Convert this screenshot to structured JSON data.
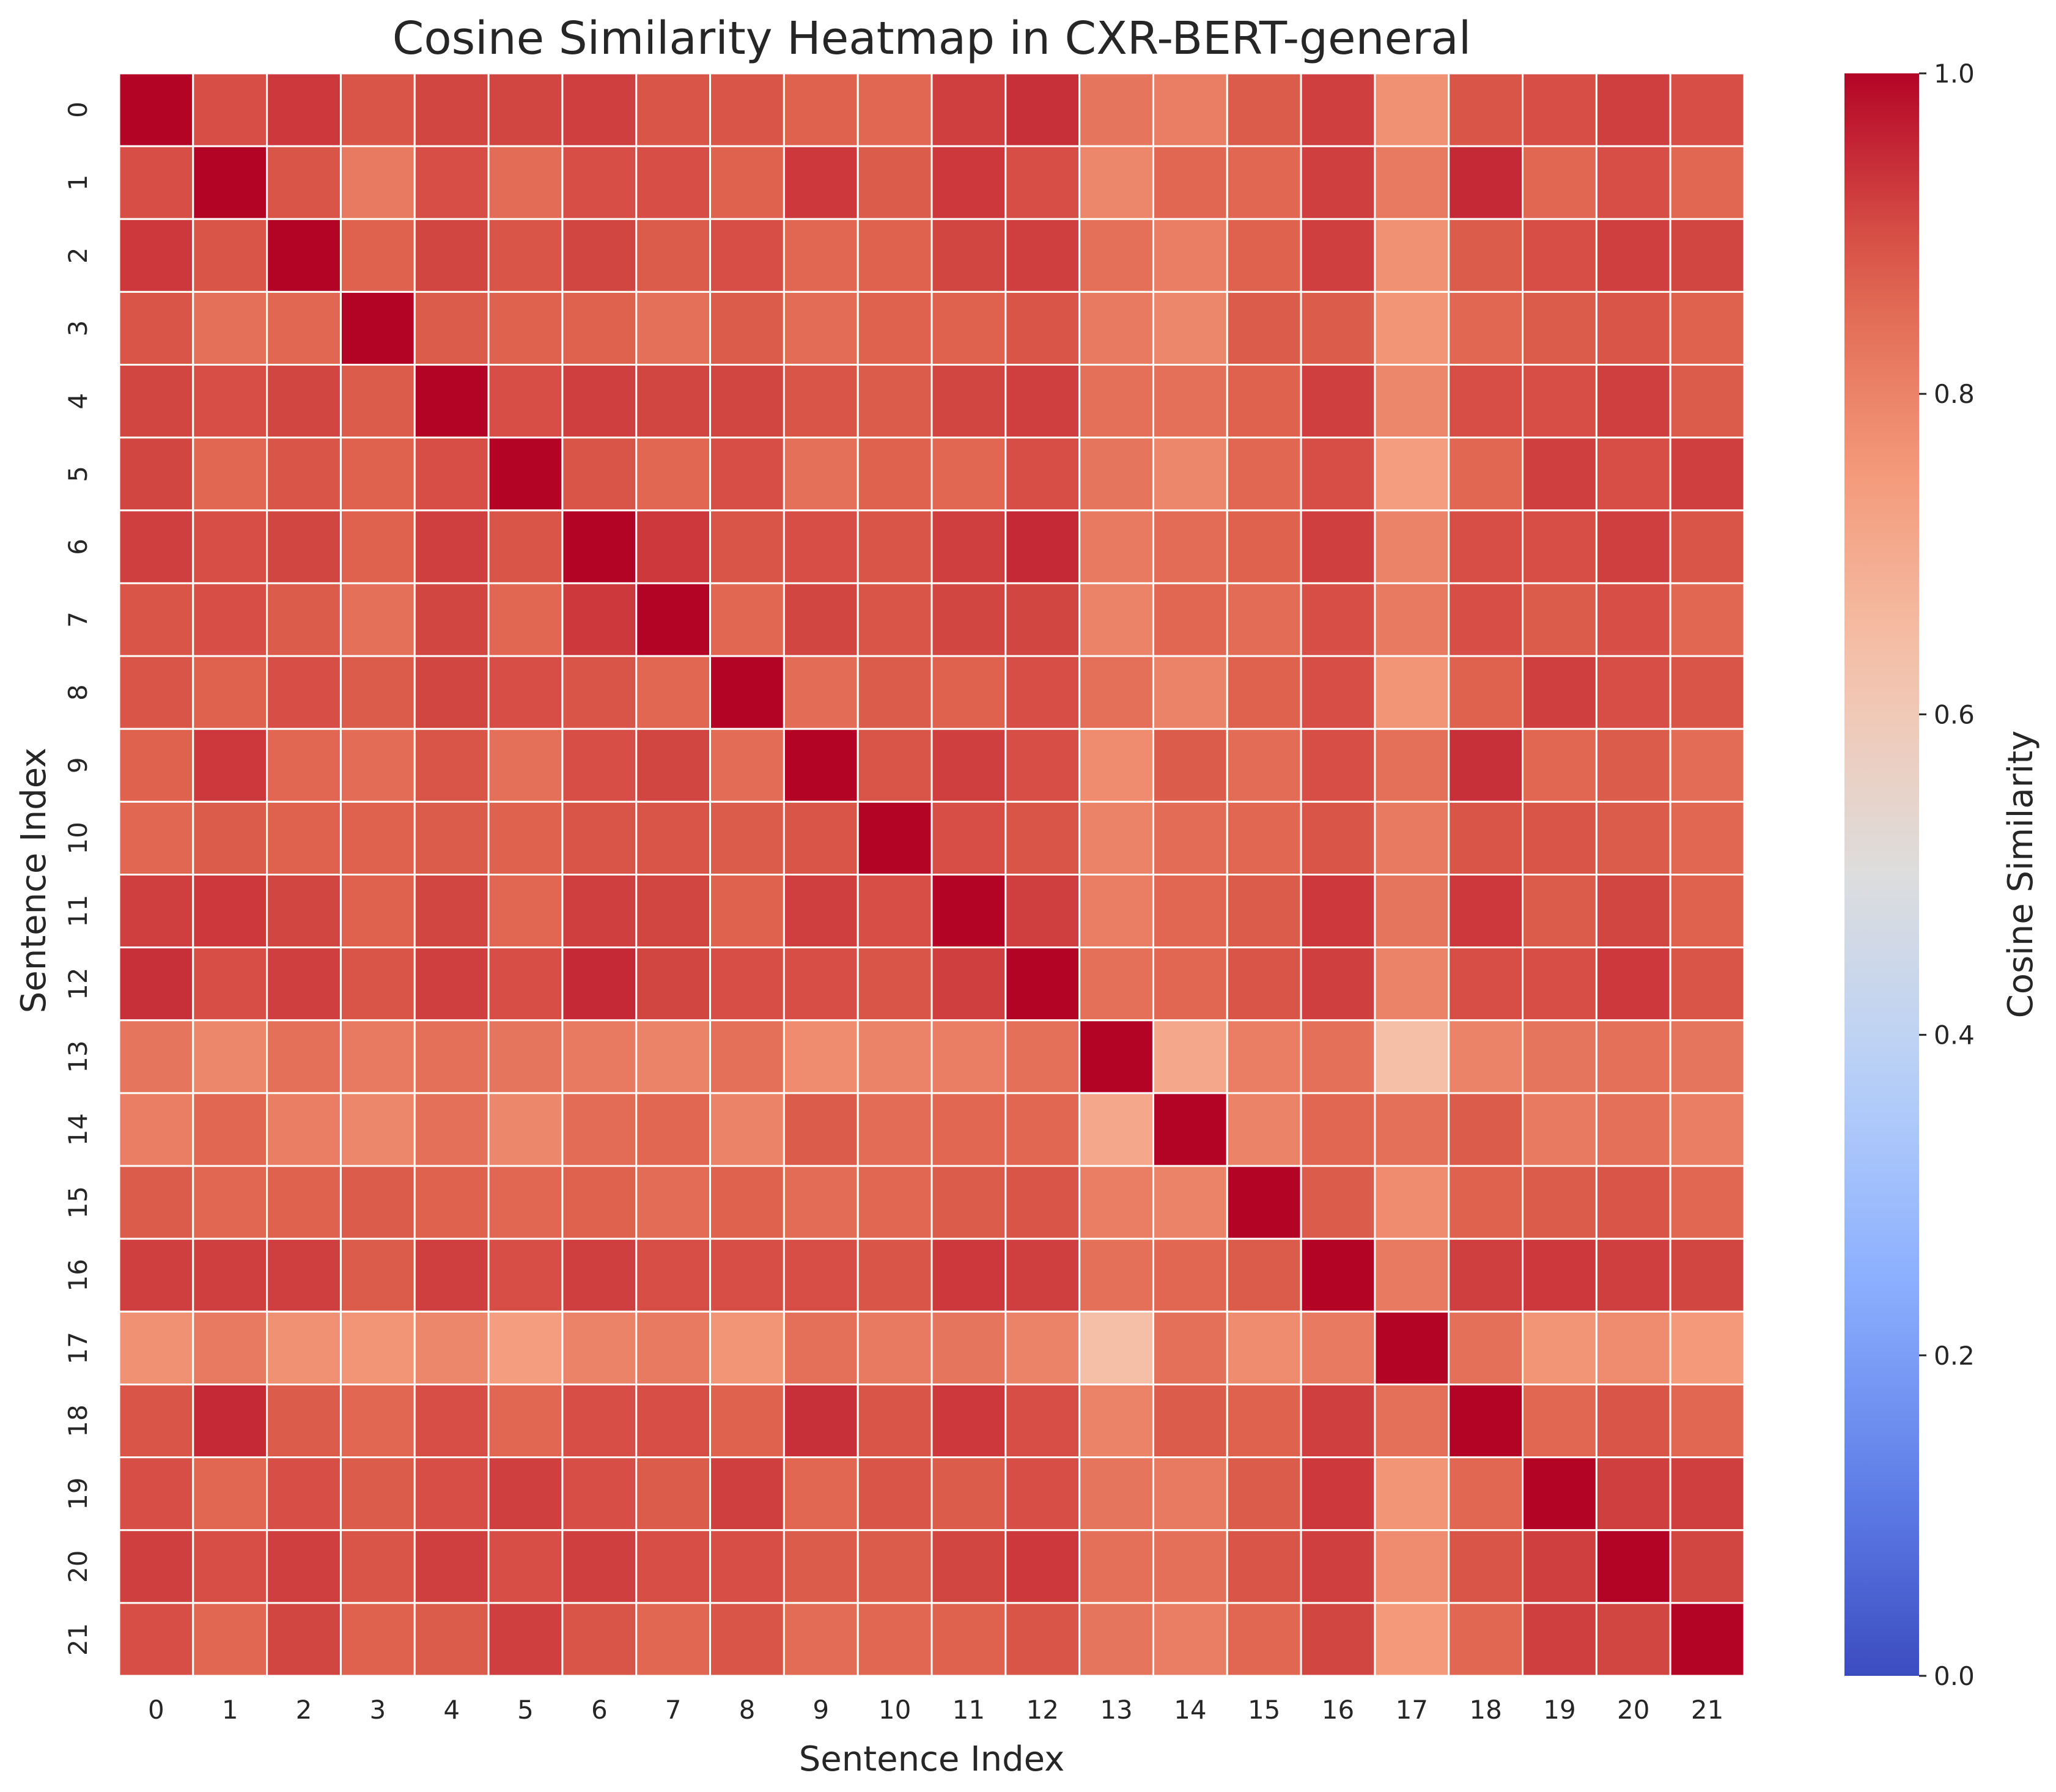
{
  "chart_data": {
    "type": "heatmap",
    "title": "Cosine Similarity Heatmap in CXR-BERT-general",
    "xlabel": "Sentence Index",
    "ylabel": "Sentence Index",
    "x_categories": [
      "0",
      "1",
      "2",
      "3",
      "4",
      "5",
      "6",
      "7",
      "8",
      "9",
      "10",
      "11",
      "12",
      "13",
      "14",
      "15",
      "16",
      "17",
      "18",
      "19",
      "20",
      "21"
    ],
    "y_categories": [
      "0",
      "1",
      "2",
      "3",
      "4",
      "5",
      "6",
      "7",
      "8",
      "9",
      "10",
      "11",
      "12",
      "13",
      "14",
      "15",
      "16",
      "17",
      "18",
      "19",
      "20",
      "21"
    ],
    "colormap": "coolwarm",
    "vmin": 0.0,
    "vmax": 1.0,
    "colorbar": {
      "label": "Cosine Similarity",
      "ticks": [
        "0.0",
        "0.2",
        "0.4",
        "0.6",
        "0.8",
        "1.0"
      ],
      "tick_values": [
        0.0,
        0.2,
        0.4,
        0.6,
        0.8,
        1.0
      ]
    },
    "grid_lines": "white",
    "values": [
      [
        1.0,
        0.9,
        0.93,
        0.89,
        0.91,
        0.91,
        0.92,
        0.89,
        0.89,
        0.87,
        0.86,
        0.92,
        0.94,
        0.83,
        0.81,
        0.88,
        0.92,
        0.77,
        0.89,
        0.9,
        0.92,
        0.9
      ],
      [
        0.9,
        1.0,
        0.89,
        0.82,
        0.9,
        0.85,
        0.9,
        0.9,
        0.87,
        0.93,
        0.88,
        0.93,
        0.9,
        0.79,
        0.86,
        0.86,
        0.92,
        0.82,
        0.95,
        0.86,
        0.9,
        0.86
      ],
      [
        0.93,
        0.89,
        1.0,
        0.87,
        0.91,
        0.89,
        0.91,
        0.88,
        0.9,
        0.86,
        0.87,
        0.91,
        0.92,
        0.84,
        0.81,
        0.87,
        0.92,
        0.77,
        0.88,
        0.9,
        0.92,
        0.91
      ],
      [
        0.89,
        0.84,
        0.86,
        1.0,
        0.88,
        0.87,
        0.87,
        0.84,
        0.88,
        0.85,
        0.87,
        0.87,
        0.89,
        0.82,
        0.79,
        0.88,
        0.88,
        0.76,
        0.86,
        0.88,
        0.89,
        0.87
      ],
      [
        0.91,
        0.9,
        0.91,
        0.88,
        1.0,
        0.9,
        0.92,
        0.91,
        0.91,
        0.89,
        0.88,
        0.91,
        0.92,
        0.84,
        0.84,
        0.87,
        0.92,
        0.79,
        0.9,
        0.9,
        0.92,
        0.88
      ],
      [
        0.91,
        0.86,
        0.89,
        0.87,
        0.9,
        1.0,
        0.89,
        0.86,
        0.9,
        0.84,
        0.87,
        0.86,
        0.9,
        0.83,
        0.79,
        0.86,
        0.9,
        0.74,
        0.86,
        0.92,
        0.9,
        0.92
      ],
      [
        0.92,
        0.9,
        0.91,
        0.87,
        0.92,
        0.89,
        1.0,
        0.93,
        0.89,
        0.9,
        0.89,
        0.92,
        0.95,
        0.82,
        0.85,
        0.87,
        0.92,
        0.8,
        0.9,
        0.9,
        0.92,
        0.89
      ],
      [
        0.89,
        0.9,
        0.88,
        0.84,
        0.91,
        0.86,
        0.93,
        1.0,
        0.86,
        0.91,
        0.89,
        0.91,
        0.91,
        0.8,
        0.86,
        0.85,
        0.9,
        0.82,
        0.9,
        0.88,
        0.9,
        0.86
      ],
      [
        0.89,
        0.87,
        0.9,
        0.88,
        0.91,
        0.9,
        0.89,
        0.86,
        1.0,
        0.85,
        0.88,
        0.87,
        0.9,
        0.84,
        0.8,
        0.87,
        0.9,
        0.76,
        0.87,
        0.92,
        0.9,
        0.89
      ],
      [
        0.87,
        0.93,
        0.86,
        0.85,
        0.89,
        0.84,
        0.9,
        0.91,
        0.85,
        1.0,
        0.89,
        0.92,
        0.9,
        0.78,
        0.88,
        0.85,
        0.9,
        0.84,
        0.94,
        0.86,
        0.88,
        0.85
      ],
      [
        0.86,
        0.88,
        0.87,
        0.87,
        0.88,
        0.87,
        0.89,
        0.89,
        0.88,
        0.89,
        1.0,
        0.9,
        0.89,
        0.8,
        0.85,
        0.86,
        0.89,
        0.82,
        0.89,
        0.89,
        0.88,
        0.86
      ],
      [
        0.92,
        0.93,
        0.91,
        0.87,
        0.91,
        0.86,
        0.92,
        0.91,
        0.87,
        0.92,
        0.9,
        1.0,
        0.92,
        0.81,
        0.86,
        0.88,
        0.93,
        0.83,
        0.93,
        0.88,
        0.91,
        0.87
      ],
      [
        0.94,
        0.9,
        0.92,
        0.89,
        0.92,
        0.9,
        0.95,
        0.91,
        0.9,
        0.9,
        0.89,
        0.92,
        1.0,
        0.84,
        0.86,
        0.89,
        0.92,
        0.8,
        0.9,
        0.9,
        0.93,
        0.89
      ],
      [
        0.83,
        0.79,
        0.84,
        0.82,
        0.84,
        0.83,
        0.82,
        0.8,
        0.84,
        0.78,
        0.8,
        0.81,
        0.84,
        1.0,
        0.71,
        0.81,
        0.84,
        0.64,
        0.8,
        0.83,
        0.84,
        0.83
      ],
      [
        0.81,
        0.86,
        0.81,
        0.79,
        0.84,
        0.79,
        0.85,
        0.86,
        0.8,
        0.88,
        0.85,
        0.86,
        0.86,
        0.71,
        1.0,
        0.8,
        0.86,
        0.84,
        0.88,
        0.82,
        0.84,
        0.81
      ],
      [
        0.88,
        0.86,
        0.87,
        0.88,
        0.87,
        0.86,
        0.87,
        0.85,
        0.87,
        0.85,
        0.86,
        0.88,
        0.89,
        0.81,
        0.8,
        1.0,
        0.88,
        0.78,
        0.87,
        0.88,
        0.89,
        0.86
      ],
      [
        0.92,
        0.92,
        0.92,
        0.88,
        0.92,
        0.9,
        0.92,
        0.9,
        0.9,
        0.9,
        0.89,
        0.93,
        0.92,
        0.84,
        0.86,
        0.88,
        1.0,
        0.82,
        0.92,
        0.93,
        0.92,
        0.91
      ],
      [
        0.77,
        0.82,
        0.77,
        0.76,
        0.79,
        0.74,
        0.8,
        0.82,
        0.76,
        0.84,
        0.82,
        0.83,
        0.8,
        0.64,
        0.84,
        0.78,
        0.82,
        1.0,
        0.84,
        0.76,
        0.78,
        0.75
      ],
      [
        0.89,
        0.95,
        0.88,
        0.86,
        0.9,
        0.86,
        0.9,
        0.9,
        0.87,
        0.94,
        0.89,
        0.93,
        0.9,
        0.8,
        0.88,
        0.87,
        0.92,
        0.84,
        1.0,
        0.86,
        0.89,
        0.86
      ],
      [
        0.9,
        0.86,
        0.9,
        0.88,
        0.9,
        0.92,
        0.9,
        0.88,
        0.92,
        0.86,
        0.89,
        0.88,
        0.9,
        0.83,
        0.82,
        0.88,
        0.93,
        0.76,
        0.86,
        1.0,
        0.92,
        0.92
      ],
      [
        0.92,
        0.9,
        0.92,
        0.89,
        0.92,
        0.9,
        0.92,
        0.9,
        0.9,
        0.88,
        0.88,
        0.91,
        0.93,
        0.84,
        0.84,
        0.89,
        0.92,
        0.78,
        0.89,
        0.92,
        1.0,
        0.91
      ],
      [
        0.9,
        0.86,
        0.91,
        0.87,
        0.88,
        0.92,
        0.89,
        0.86,
        0.89,
        0.85,
        0.86,
        0.87,
        0.89,
        0.83,
        0.81,
        0.86,
        0.91,
        0.75,
        0.86,
        0.92,
        0.91,
        1.0
      ]
    ]
  }
}
